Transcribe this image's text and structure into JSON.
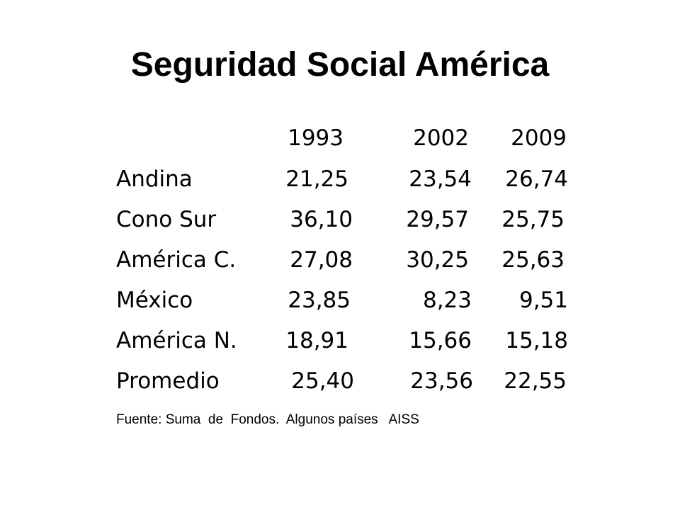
{
  "title": "Seguridad Social América",
  "table": {
    "columns": [
      "1993",
      "2002",
      "2009"
    ],
    "rows": [
      {
        "label": "Andina",
        "values": [
          "21,25",
          "23,54",
          "26,74"
        ]
      },
      {
        "label": "Cono Sur",
        "values": [
          "36,10",
          "29,57",
          "25,75"
        ]
      },
      {
        "label": "América C.",
        "values": [
          "27,08",
          "30,25",
          "25,63"
        ]
      },
      {
        "label": "México",
        "values": [
          "23,85",
          "8,23",
          "9,51"
        ]
      },
      {
        "label": "América N.",
        "values": [
          "18,91",
          "15,66",
          "15,18"
        ]
      },
      {
        "label": "Promedio",
        "values": [
          "25,40",
          "23,56",
          "22,55"
        ]
      }
    ]
  },
  "source": "Fuente: Suma  de  Fondos.  Algunos países   AISS"
}
